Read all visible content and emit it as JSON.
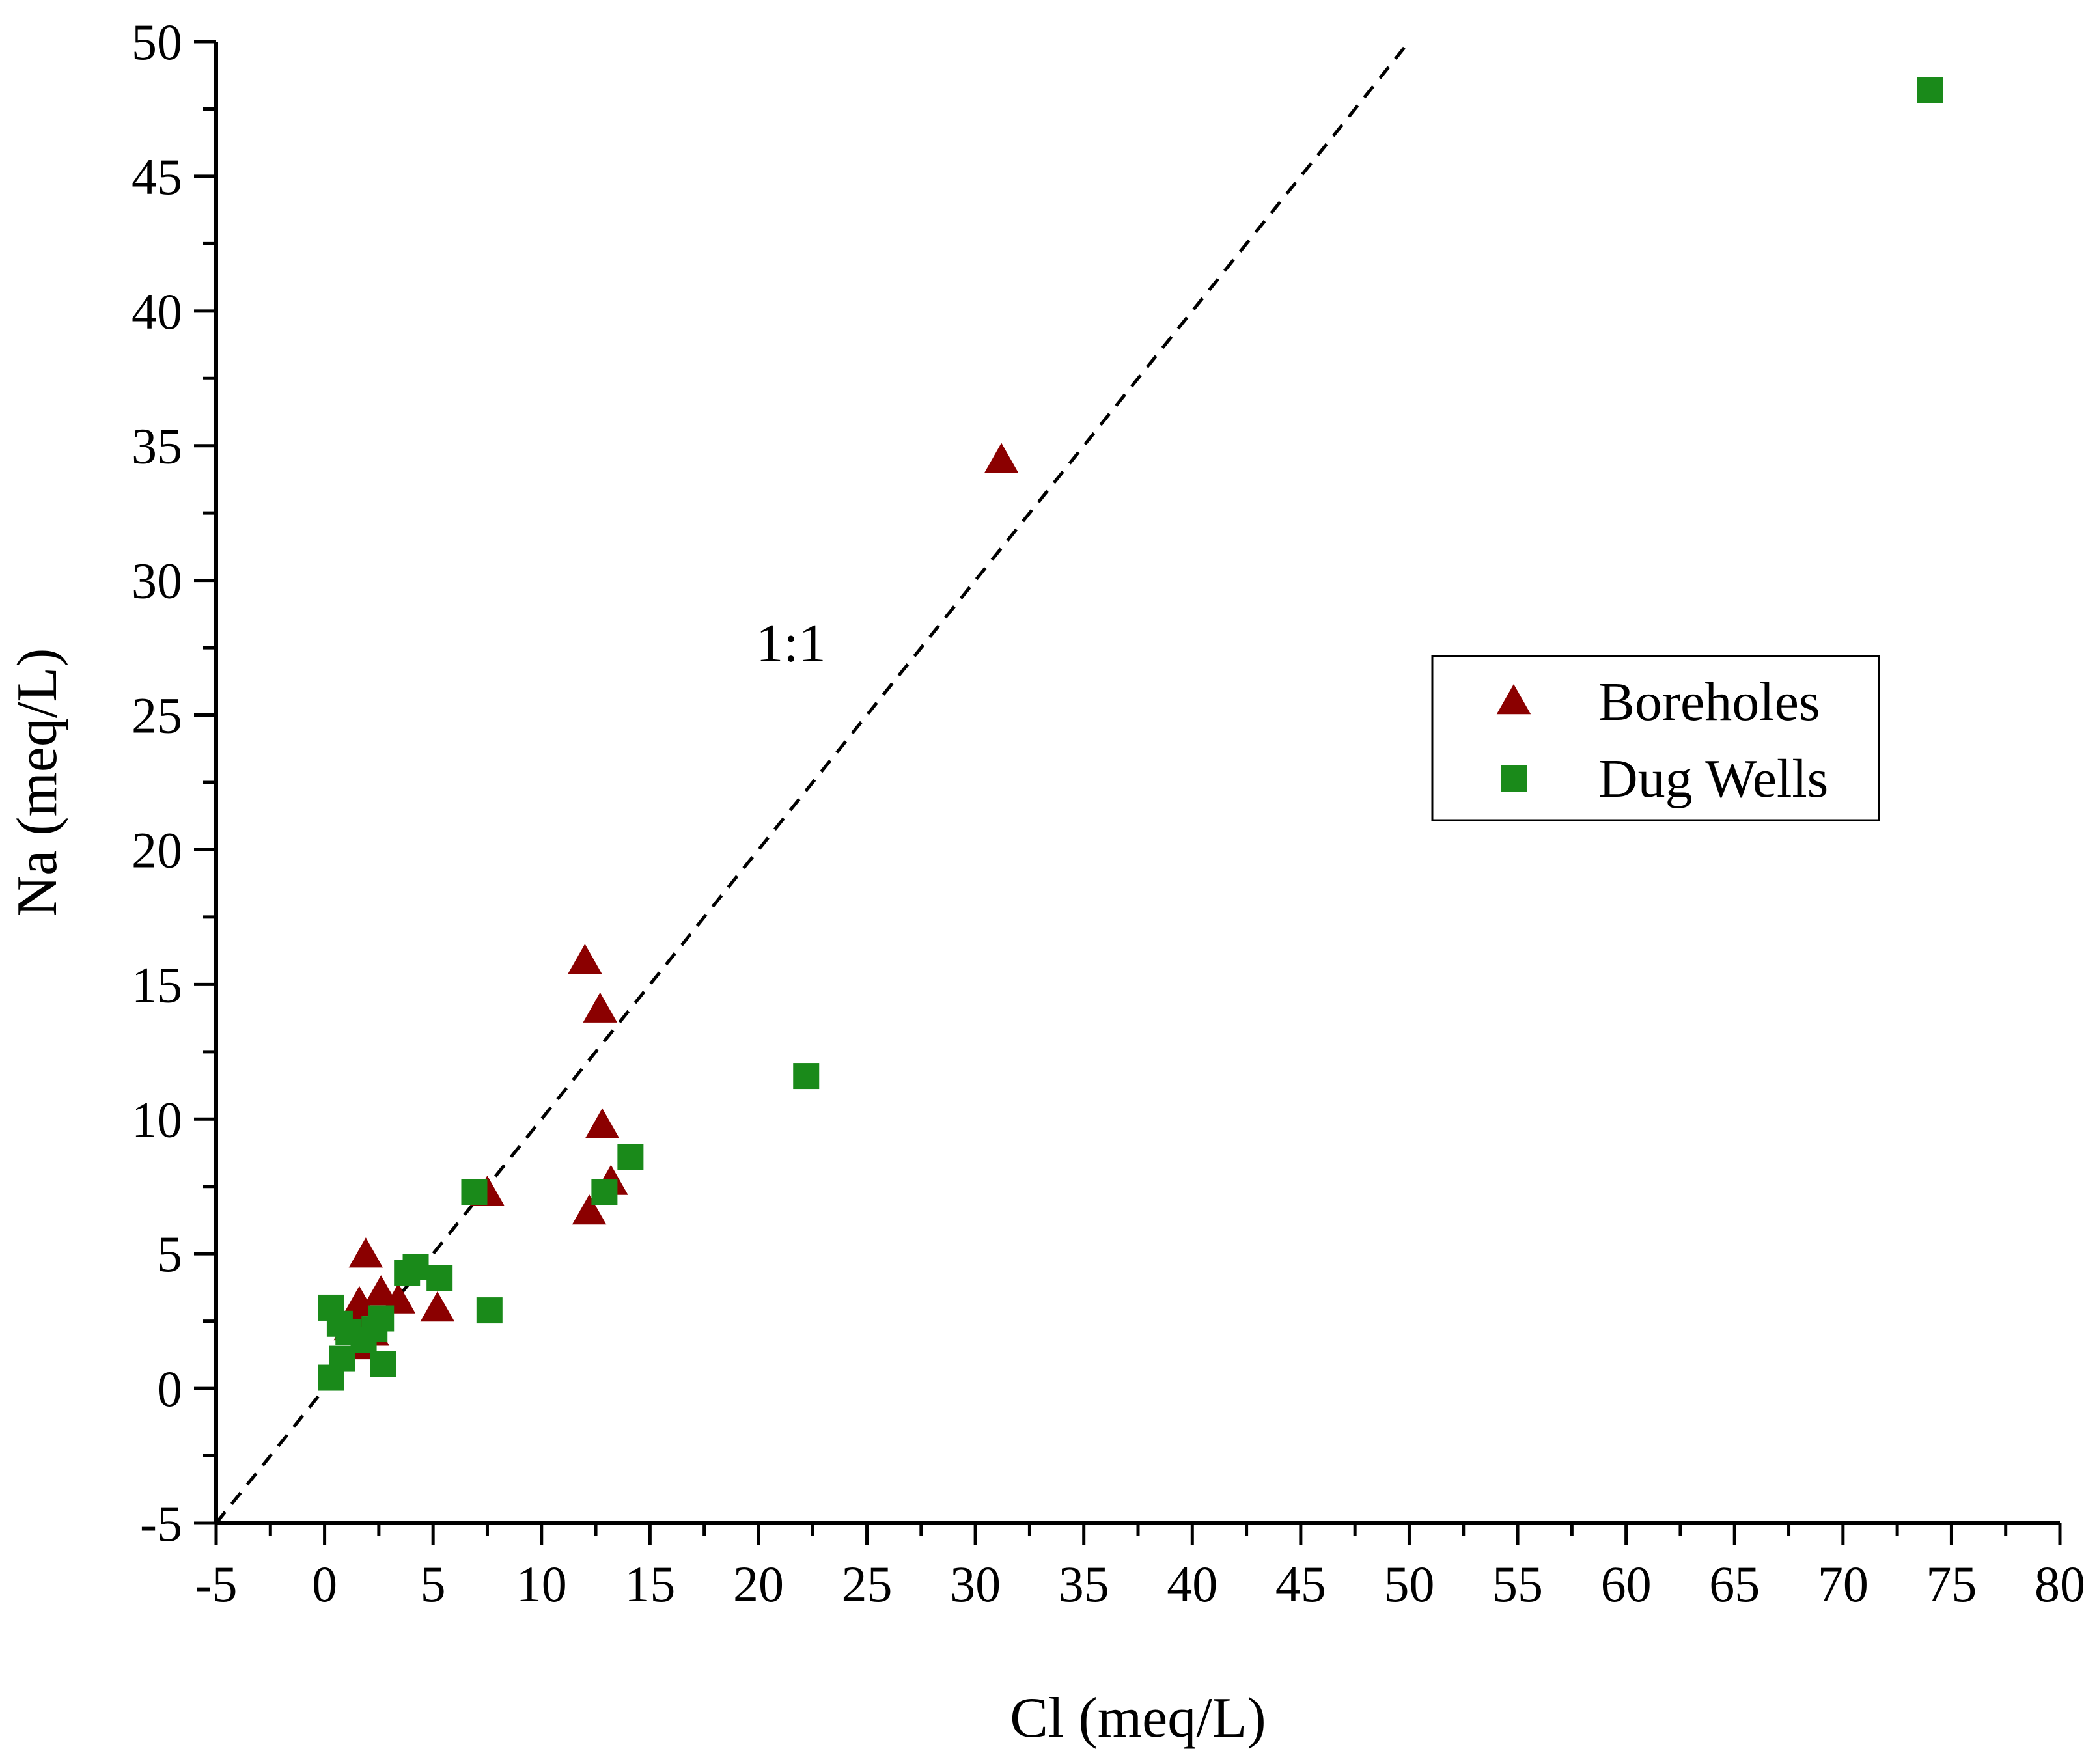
{
  "chart_data": {
    "type": "scatter",
    "title": "",
    "xlabel": "Cl (meq/L)",
    "ylabel": "Na (meq/L)",
    "xlim": [
      -5,
      80
    ],
    "ylim": [
      -5,
      50
    ],
    "xticks": [
      "-5",
      "0",
      "5",
      "10",
      "15",
      "20",
      "25",
      "30",
      "35",
      "40",
      "45",
      "50",
      "55",
      "60",
      "65",
      "70",
      "75",
      "80"
    ],
    "yticks": [
      "-5",
      "0",
      "5",
      "10",
      "15",
      "20",
      "25",
      "30",
      "35",
      "40",
      "45",
      "50"
    ],
    "reference_line": {
      "label": "1:1",
      "slope": 1,
      "intercept": 0,
      "x_range": [
        -5,
        50
      ]
    },
    "legend_position": "right",
    "series": [
      {
        "name": "Boreholes",
        "marker": "triangle",
        "color": "#8b0000",
        "points": [
          [
            31.2,
            34.5
          ],
          [
            12.0,
            15.9
          ],
          [
            12.7,
            14.1
          ],
          [
            12.8,
            9.8
          ],
          [
            13.2,
            7.7
          ],
          [
            12.2,
            6.6
          ],
          [
            7.5,
            7.3
          ],
          [
            1.9,
            5.0
          ],
          [
            2.6,
            3.6
          ],
          [
            1.6,
            3.2
          ],
          [
            3.4,
            3.3
          ],
          [
            5.2,
            3.0
          ],
          [
            1.4,
            2.6
          ],
          [
            2.2,
            2.1
          ],
          [
            1.7,
            1.6
          ],
          [
            1.2,
            2.3
          ]
        ]
      },
      {
        "name": "Dug Wells",
        "marker": "square",
        "color": "#1a8a1a",
        "points": [
          [
            74.0,
            48.2
          ],
          [
            22.2,
            11.6
          ],
          [
            14.1,
            8.6
          ],
          [
            12.9,
            7.3
          ],
          [
            6.9,
            7.3
          ],
          [
            4.2,
            4.5
          ],
          [
            3.8,
            4.3
          ],
          [
            5.3,
            4.1
          ],
          [
            7.6,
            2.9
          ],
          [
            0.3,
            3.0
          ],
          [
            0.7,
            2.4
          ],
          [
            1.1,
            2.1
          ],
          [
            2.6,
            2.6
          ],
          [
            2.3,
            2.2
          ],
          [
            1.8,
            1.8
          ],
          [
            2.7,
            0.9
          ],
          [
            0.8,
            1.1
          ],
          [
            0.3,
            0.4
          ]
        ]
      }
    ]
  }
}
